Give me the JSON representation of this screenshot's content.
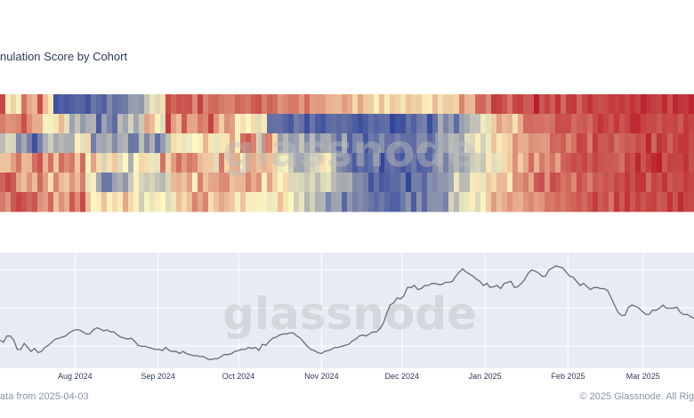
{
  "header": {
    "title": "nulation Score by Cohort"
  },
  "footer": {
    "left": "ata from 2025-04-03",
    "right": "© 2025 Glassnode. All Rig"
  },
  "watermark": "glassnode",
  "colors": {
    "heat_low": "#2b3f9b",
    "heat_mid": "#fdf6c0",
    "heat_high": "#b50f1f",
    "price_line": "#6b6b6b",
    "price_bg": "#e7ebf5",
    "grid": "#ffffff"
  },
  "chart_data": [
    {
      "type": "heatmap",
      "title": "",
      "rows": 6,
      "columns": 130,
      "scale": [
        0,
        1
      ],
      "cell_values": [
        [
          0.88,
          0.52,
          0.58,
          0.48,
          0.79,
          0.67,
          0.64,
          0.86,
          0.62,
          0.53,
          0.05,
          0.09,
          0.07,
          0.09,
          0.11,
          0.1,
          0.06,
          0.15,
          0.12,
          0.09,
          0.21,
          0.13,
          0.15,
          0.16,
          0.25,
          0.26,
          0.24,
          0.37,
          0.45,
          0.42,
          0.55,
          0.87,
          0.81,
          0.85,
          0.84,
          0.85,
          0.73,
          0.89,
          0.75,
          0.8,
          0.81,
          0.77,
          0.75,
          0.75,
          0.81,
          0.79,
          0.77,
          0.83,
          0.85,
          0.76,
          0.82,
          0.8,
          0.71,
          0.74,
          0.77,
          0.77,
          0.7,
          0.8,
          0.69,
          0.7,
          0.7,
          0.65,
          0.64,
          0.63,
          0.69,
          0.66,
          0.57,
          0.68,
          0.6,
          0.59,
          0.51,
          0.62,
          0.52,
          0.6,
          0.58,
          0.54,
          0.61,
          0.58,
          0.59,
          0.53,
          0.52,
          0.63,
          0.55,
          0.59,
          0.59,
          0.57,
          0.75,
          0.64,
          0.63,
          0.81,
          0.81,
          0.73,
          0.9,
          0.89,
          0.85,
          0.78,
          0.88,
          0.89,
          0.84,
          0.84,
          0.97,
          0.84,
          0.89,
          0.83,
          0.92,
          0.8,
          0.9,
          0.91,
          0.81,
          0.88,
          0.92,
          0.87,
          0.86,
          0.87,
          0.9,
          0.89,
          0.91,
          0.88,
          0.92,
          0.89,
          0.95,
          0.92,
          0.9,
          0.88,
          0.94,
          0.86,
          0.95,
          0.92,
          0.91,
          0.95
        ],
        [
          0.76,
          0.71,
          0.72,
          0.75,
          0.86,
          0.73,
          0.66,
          0.66,
          0.51,
          0.48,
          0.54,
          0.63,
          0.44,
          0.27,
          0.36,
          0.25,
          0.31,
          0.32,
          0.08,
          0.27,
          0.19,
          0.12,
          0.34,
          0.28,
          0.4,
          0.28,
          0.38,
          0.68,
          0.63,
          0.51,
          0.43,
          0.9,
          0.69,
          0.62,
          0.84,
          0.68,
          0.67,
          0.77,
          0.74,
          0.89,
          0.71,
          0.59,
          0.72,
          0.69,
          0.49,
          0.55,
          0.5,
          0.56,
          0.43,
          0.53,
          0.13,
          0.14,
          0.14,
          0.1,
          0.07,
          0.17,
          0.14,
          0.04,
          0.15,
          0.08,
          0.06,
          0.12,
          0.13,
          0.11,
          0.13,
          0.11,
          0.08,
          0.05,
          0.08,
          0.13,
          0.1,
          0.12,
          0.13,
          0.02,
          0.06,
          0.05,
          0.14,
          0.09,
          0.16,
          0.18,
          0.04,
          0.13,
          0.3,
          0.19,
          0.26,
          0.12,
          0.26,
          0.3,
          0.36,
          0.36,
          0.47,
          0.44,
          0.59,
          0.69,
          0.63,
          0.65,
          0.55,
          0.66,
          0.8,
          0.8,
          0.79,
          0.79,
          0.77,
          0.79,
          0.87,
          0.86,
          0.86,
          0.8,
          0.83,
          0.84,
          0.8,
          0.87,
          0.92,
          0.88,
          0.85,
          0.91,
          0.85,
          0.88,
          0.94,
          0.94,
          0.89,
          0.87,
          0.87,
          0.84,
          0.88,
          0.87,
          0.88,
          0.84,
          0.91,
          0.88
        ],
        [
          0.34,
          0.42,
          0.41,
          0.2,
          0.29,
          0.18,
          0.05,
          0.18,
          0.31,
          0.39,
          0.29,
          0.33,
          0.3,
          0.3,
          0.51,
          0.44,
          0.57,
          0.17,
          0.29,
          0.28,
          0.32,
          0.21,
          0.3,
          0.32,
          0.15,
          0.16,
          0.35,
          0.2,
          0.31,
          0.13,
          0.25,
          0.35,
          0.56,
          0.53,
          0.45,
          0.47,
          0.5,
          0.49,
          0.64,
          0.54,
          0.45,
          0.54,
          0.54,
          0.68,
          0.51,
          0.79,
          0.84,
          0.75,
          0.42,
          0.79,
          0.75,
          0.56,
          0.26,
          0.33,
          0.25,
          0.27,
          0.37,
          0.2,
          0.34,
          0.21,
          0.29,
          0.3,
          0.21,
          0.12,
          0.31,
          0.09,
          0.19,
          0.2,
          0.06,
          0.16,
          0.13,
          0.22,
          0.14,
          0.13,
          0.18,
          0.13,
          0.13,
          0.12,
          0.21,
          0.21,
          0.11,
          0.15,
          0.26,
          0.27,
          0.34,
          0.32,
          0.27,
          0.44,
          0.42,
          0.52,
          0.4,
          0.47,
          0.61,
          0.53,
          0.56,
          0.59,
          0.72,
          0.66,
          0.66,
          0.72,
          0.71,
          0.7,
          0.7,
          0.82,
          0.8,
          0.83,
          0.73,
          0.79,
          0.89,
          0.87,
          0.76,
          0.9,
          0.84,
          0.84,
          0.87,
          0.79,
          0.82,
          0.84,
          0.83,
          0.87,
          0.85,
          0.95,
          0.81,
          0.92,
          0.89,
          0.82,
          0.88,
          0.91,
          0.91,
          0.87
        ],
        [
          0.61,
          0.61,
          0.69,
          0.78,
          0.63,
          0.64,
          0.79,
          0.85,
          0.64,
          0.79,
          0.6,
          0.8,
          0.73,
          0.77,
          0.6,
          0.8,
          0.49,
          0.68,
          0.56,
          0.41,
          0.55,
          0.6,
          0.43,
          0.5,
          0.31,
          0.5,
          0.57,
          0.55,
          0.46,
          0.45,
          0.79,
          0.57,
          0.69,
          0.8,
          0.7,
          0.77,
          0.74,
          0.63,
          0.6,
          0.59,
          0.43,
          0.77,
          0.57,
          0.65,
          0.66,
          0.49,
          0.68,
          0.66,
          0.61,
          0.65,
          0.62,
          0.58,
          0.47,
          0.48,
          0.39,
          0.28,
          0.28,
          0.33,
          0.4,
          0.43,
          0.55,
          0.52,
          0.36,
          0.21,
          0.18,
          0.15,
          0.07,
          0.13,
          0.1,
          0.13,
          0.19,
          0.02,
          0.11,
          0.14,
          0.1,
          0.06,
          0.11,
          0.16,
          0.08,
          0.1,
          0.11,
          0.21,
          0.28,
          0.18,
          0.27,
          0.33,
          0.26,
          0.31,
          0.39,
          0.41,
          0.37,
          0.53,
          0.43,
          0.45,
          0.56,
          0.6,
          0.72,
          0.59,
          0.67,
          0.8,
          0.64,
          0.77,
          0.71,
          0.78,
          0.68,
          0.82,
          0.84,
          0.87,
          0.85,
          0.88,
          0.83,
          0.88,
          0.85,
          0.84,
          0.84,
          0.83,
          0.79,
          0.89,
          0.86,
          0.95,
          0.85,
          0.9,
          0.94,
          0.96,
          0.84,
          0.89,
          0.88,
          0.88,
          0.92,
          0.86
        ],
        [
          0.82,
          0.88,
          0.84,
          0.67,
          0.62,
          0.71,
          0.63,
          0.8,
          0.69,
          0.55,
          0.75,
          0.63,
          0.6,
          0.71,
          0.63,
          0.76,
          0.45,
          0.48,
          0.29,
          0.15,
          0.15,
          0.27,
          0.31,
          0.24,
          0.38,
          0.49,
          0.41,
          0.38,
          0.41,
          0.36,
          0.33,
          0.41,
          0.63,
          0.65,
          0.61,
          0.69,
          0.51,
          0.76,
          0.61,
          0.67,
          0.68,
          0.73,
          0.73,
          0.61,
          0.64,
          0.64,
          0.75,
          0.66,
          0.72,
          0.52,
          0.68,
          0.57,
          0.5,
          0.56,
          0.42,
          0.42,
          0.41,
          0.37,
          0.43,
          0.34,
          0.42,
          0.44,
          0.34,
          0.3,
          0.29,
          0.31,
          0.2,
          0.21,
          0.18,
          0.06,
          0.14,
          0.07,
          0.09,
          0.12,
          0.12,
          0.17,
          0.02,
          0.17,
          0.17,
          0.11,
          0.22,
          0.2,
          0.24,
          0.24,
          0.28,
          0.46,
          0.34,
          0.34,
          0.47,
          0.54,
          0.45,
          0.6,
          0.56,
          0.63,
          0.63,
          0.53,
          0.72,
          0.71,
          0.76,
          0.67,
          0.84,
          0.86,
          0.71,
          0.87,
          0.84,
          0.78,
          0.81,
          0.74,
          0.87,
          0.82,
          0.76,
          0.84,
          0.82,
          0.85,
          0.83,
          0.88,
          0.86,
          0.91,
          0.86,
          0.92,
          0.92,
          0.8,
          0.89,
          0.86,
          0.92,
          0.84,
          0.87,
          0.86,
          0.9,
          0.88
        ],
        [
          0.77,
          0.71,
          0.84,
          0.88,
          0.85,
          0.81,
          0.85,
          0.72,
          0.69,
          0.81,
          0.61,
          0.72,
          0.66,
          0.84,
          0.73,
          0.87,
          0.62,
          0.5,
          0.52,
          0.61,
          0.49,
          0.56,
          0.52,
          0.67,
          0.56,
          0.51,
          0.39,
          0.49,
          0.45,
          0.52,
          0.5,
          0.43,
          0.46,
          0.62,
          0.56,
          0.62,
          0.75,
          0.67,
          0.75,
          0.55,
          0.61,
          0.67,
          0.63,
          0.6,
          0.48,
          0.61,
          0.48,
          0.52,
          0.49,
          0.49,
          0.46,
          0.47,
          0.62,
          0.54,
          0.5,
          0.39,
          0.45,
          0.32,
          0.4,
          0.31,
          0.32,
          0.19,
          0.27,
          0.28,
          0.11,
          0.24,
          0.18,
          0.21,
          0.18,
          0.15,
          0.12,
          0.16,
          0.12,
          0.09,
          0.09,
          0.16,
          0.23,
          0.08,
          0.23,
          0.11,
          0.22,
          0.23,
          0.23,
          0.18,
          0.41,
          0.33,
          0.44,
          0.46,
          0.52,
          0.42,
          0.49,
          0.59,
          0.7,
          0.62,
          0.66,
          0.71,
          0.66,
          0.65,
          0.71,
          0.74,
          0.69,
          0.71,
          0.78,
          0.77,
          0.8,
          0.77,
          0.8,
          0.82,
          0.84,
          0.8,
          0.85,
          0.9,
          0.83,
          0.86,
          0.78,
          0.91,
          0.84,
          0.92,
          0.84,
          0.89,
          0.85,
          0.88,
          0.89,
          0.84,
          0.85,
          0.92,
          0.85,
          0.94,
          0.88,
          0.87
        ]
      ]
    },
    {
      "type": "line",
      "title": "",
      "x_ticks": [
        "Aug 2024",
        "Sep 2024",
        "Oct 2024",
        "Nov 2024",
        "Dec 2024",
        "Jan 2025",
        "Feb 2025",
        "Mar 2025"
      ],
      "x_range": [
        "2024-07-04",
        "2025-03-20"
      ],
      "grid": true,
      "series": [
        {
          "values": [
            0.22,
            0.2,
            0.26,
            0.26,
            0.22,
            0.13,
            0.13,
            0.19,
            0.15,
            0.11,
            0.14,
            0.1,
            0.11,
            0.15,
            0.17,
            0.2,
            0.23,
            0.24,
            0.25,
            0.26,
            0.29,
            0.31,
            0.32,
            0.32,
            0.3,
            0.28,
            0.28,
            0.32,
            0.34,
            0.33,
            0.31,
            0.32,
            0.3,
            0.3,
            0.27,
            0.25,
            0.24,
            0.23,
            0.24,
            0.21,
            0.17,
            0.16,
            0.16,
            0.15,
            0.14,
            0.13,
            0.13,
            0.12,
            0.15,
            0.12,
            0.11,
            0.11,
            0.09,
            0.11,
            0.09,
            0.08,
            0.07,
            0.07,
            0.06,
            0.06,
            0.04,
            0.03,
            0.04,
            0.04,
            0.06,
            0.08,
            0.08,
            0.09,
            0.11,
            0.12,
            0.13,
            0.13,
            0.15,
            0.14,
            0.15,
            0.12,
            0.18,
            0.17,
            0.21,
            0.24,
            0.25,
            0.27,
            0.28,
            0.28,
            0.29,
            0.29,
            0.26,
            0.24,
            0.2,
            0.16,
            0.13,
            0.12,
            0.1,
            0.09,
            0.11,
            0.12,
            0.13,
            0.15,
            0.15,
            0.16,
            0.17,
            0.18,
            0.21,
            0.23,
            0.26,
            0.27,
            0.26,
            0.28,
            0.3,
            0.3,
            0.33,
            0.38,
            0.48,
            0.56,
            0.58,
            0.63,
            0.62,
            0.65,
            0.73,
            0.73,
            0.75,
            0.71,
            0.72,
            0.75,
            0.75,
            0.77,
            0.77,
            0.76,
            0.76,
            0.78,
            0.78,
            0.79,
            0.84,
            0.88,
            0.91,
            0.88,
            0.86,
            0.84,
            0.81,
            0.79,
            0.75,
            0.77,
            0.73,
            0.74,
            0.75,
            0.72,
            0.77,
            0.78,
            0.79,
            0.73,
            0.74,
            0.77,
            0.81,
            0.87,
            0.9,
            0.89,
            0.87,
            0.84,
            0.84,
            0.9,
            0.92,
            0.94,
            0.93,
            0.92,
            0.88,
            0.84,
            0.83,
            0.79,
            0.75,
            0.77,
            0.74,
            0.71,
            0.73,
            0.73,
            0.72,
            0.72,
            0.7,
            0.63,
            0.56,
            0.49,
            0.46,
            0.46,
            0.54,
            0.56,
            0.55,
            0.53,
            0.5,
            0.47,
            0.47,
            0.51,
            0.51,
            0.53,
            0.56,
            0.53,
            0.53,
            0.53,
            0.54,
            0.49,
            0.47,
            0.47,
            0.45,
            0.43
          ]
        }
      ]
    }
  ]
}
